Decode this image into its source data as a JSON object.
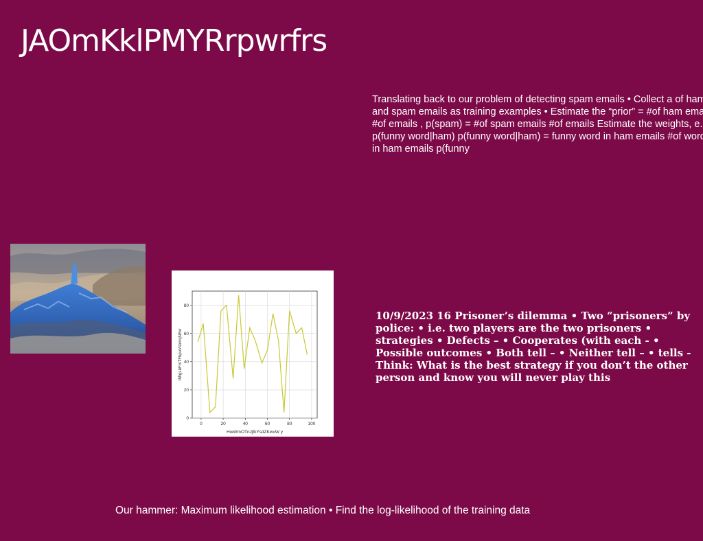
{
  "slide": {
    "title": "JAOmKklPMYRrpwrfrs",
    "paragraph_right": "Translating back to our problem of detecting spam emails • Collect a of ham and spam emails as training examples • Estimate the “prior” = #of ham emails #of emails , p(spam) = #of spam emails #of emails Estimate the weights, e.g., p(funny word|ham) p(funny word|ham) = funny word in ham emails #of words in ham emails p(funny",
    "paragraph_bold": "10/9/2023 16 Prisoner’s dilemma • Two “prisoners” by police: • i.e. two players are the two prisoners • strategies • Defects – • Cooperates (with each - • Possible outcomes • Both tell – • Neither tell – • tells - Think: What is the best strategy if you don’t the other person and know you will never play this",
    "footer": "Our hammer: Maximum likelihood estimation • Find the log-likelihood of the training data"
  },
  "colors": {
    "background": "#7d0a48",
    "text": "#ffffff",
    "line": "#c8c832"
  },
  "chart_data": {
    "type": "line",
    "xlabel": "HwWmOTnJjfkYsdZKwvW y",
    "ylabel": "IMIgLbFrsTFbpuVsbmqNEw",
    "xlim": [
      -8,
      105
    ],
    "ylim": [
      0,
      90
    ],
    "x_ticks": [
      0,
      20,
      40,
      60,
      80,
      100
    ],
    "y_ticks": [
      0,
      20,
      40,
      60,
      80
    ],
    "grid": true,
    "series": [
      {
        "x": [
          -3,
          2,
          8,
          13,
          18,
          23,
          29,
          34,
          39,
          44,
          49,
          55,
          60,
          65,
          70,
          75,
          80,
          86,
          91,
          96
        ],
        "y": [
          54,
          67,
          4,
          8,
          76,
          80,
          28,
          87,
          35,
          64,
          55,
          39,
          48,
          74,
          55,
          4,
          76,
          60,
          64,
          45
        ]
      }
    ]
  }
}
